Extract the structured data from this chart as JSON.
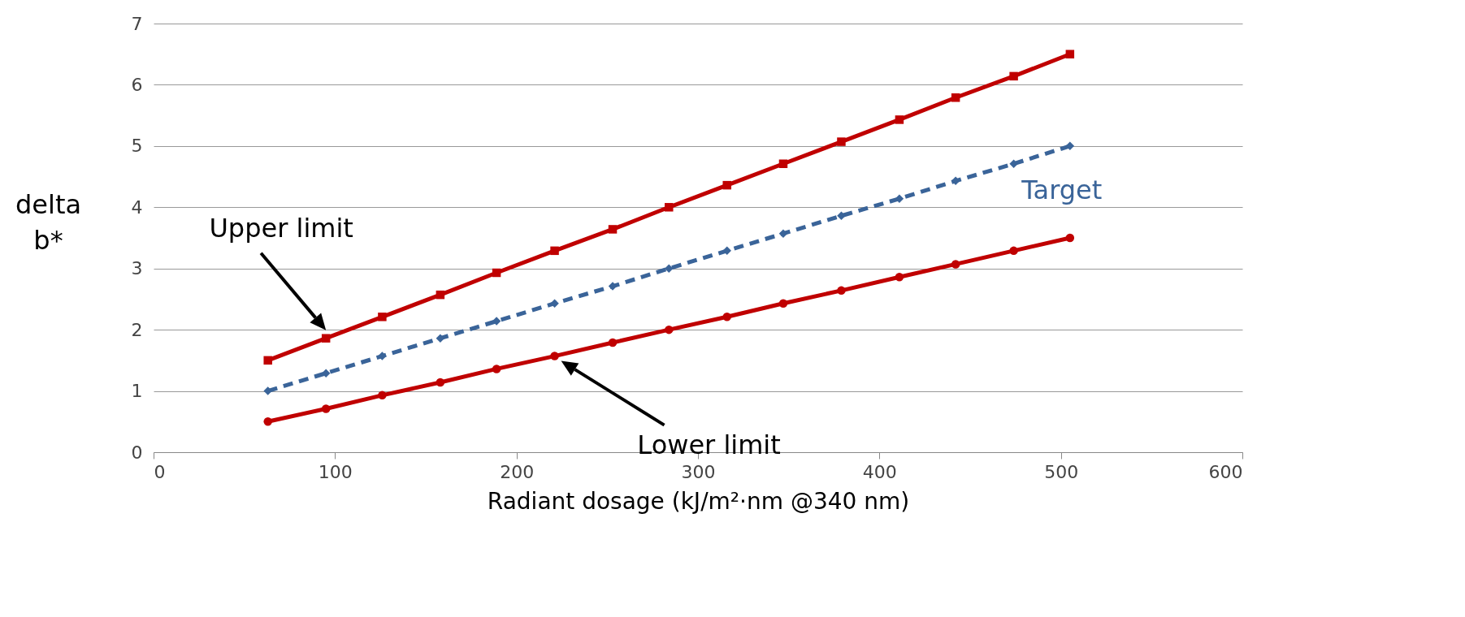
{
  "chart_data": {
    "type": "line",
    "xlabel": "Radiant dosage (kJ/m²·nm @340 nm)",
    "ylabel": "delta b*",
    "x": [
      63,
      95,
      126,
      158,
      189,
      221,
      253,
      284,
      316,
      347,
      379,
      411,
      442,
      474,
      505
    ],
    "series": [
      {
        "name": "Upper limit",
        "color": "#c00000",
        "marker": "square",
        "line_style": "solid",
        "values": [
          1.5,
          1.86,
          2.21,
          2.57,
          2.93,
          3.29,
          3.64,
          4.0,
          4.36,
          4.71,
          5.07,
          5.43,
          5.79,
          6.14,
          6.5
        ]
      },
      {
        "name": "Target",
        "color": "#3a6499",
        "marker": "diamond",
        "line_style": "dashed",
        "values": [
          1.0,
          1.29,
          1.57,
          1.86,
          2.14,
          2.43,
          2.71,
          3.0,
          3.29,
          3.57,
          3.86,
          4.14,
          4.43,
          4.71,
          5.0
        ]
      },
      {
        "name": "Lower limit",
        "color": "#c00000",
        "marker": "circle",
        "line_style": "solid",
        "values": [
          0.5,
          0.71,
          0.93,
          1.14,
          1.36,
          1.57,
          1.79,
          2.0,
          2.21,
          2.43,
          2.64,
          2.86,
          3.07,
          3.29,
          3.5
        ]
      }
    ],
    "xlim": [
      0,
      600
    ],
    "xticks": [
      0,
      100,
      200,
      300,
      400,
      500,
      600
    ],
    "ylim": [
      0,
      7
    ],
    "yticks": [
      0,
      1,
      2,
      3,
      4,
      5,
      6,
      7
    ],
    "grid": "y",
    "legend": false
  }
}
